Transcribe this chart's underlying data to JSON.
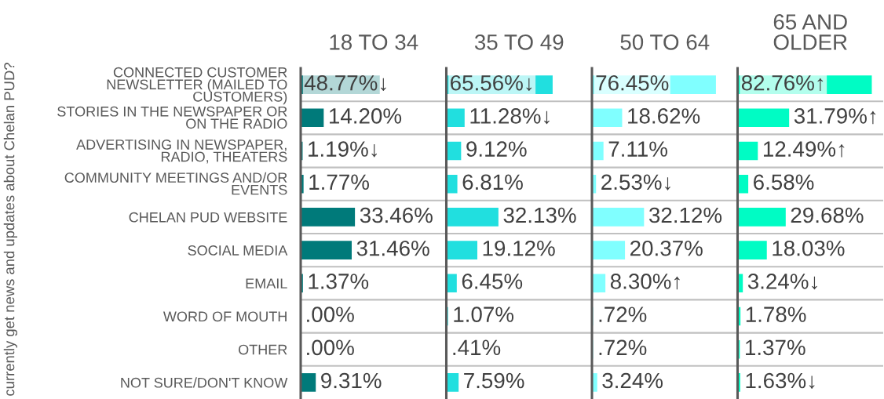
{
  "chart_data": [
    {
      "type": "bar",
      "orientation": "horizontal",
      "title": "18 TO 34",
      "ylabel": "currently get news and updates about Chelan PUD?",
      "categories": [
        "CONNECTED CUSTOMER\nNEWSLETTER (MAILED TO\nCUSTOMERS)",
        "STORIES IN THE NEWSPAPER OR\nON THE RADIO",
        "ADVERTISING IN NEWSPAPER,\nRADIO, THEATERS",
        "COMMUNITY MEETINGS AND/OR\nEVENTS",
        "CHELAN PUD WEBSITE",
        "SOCIAL MEDIA",
        "EMAIL",
        "WORD OF MOUTH",
        "OTHER",
        "NOT SURE/DON'T KNOW"
      ],
      "values": [
        48.77,
        14.2,
        1.19,
        1.77,
        33.46,
        31.46,
        1.37,
        0.0,
        0.0,
        9.31
      ],
      "value_labels": [
        "48.77%↓",
        "14.20%",
        "1.19%↓",
        "1.77%",
        "33.46%",
        "31.46%",
        "1.37%",
        ".00%",
        ".00%",
        "9.31%"
      ],
      "color": "#007a7a",
      "grid": "y",
      "tick_labels": "y"
    },
    {
      "type": "bar",
      "orientation": "horizontal",
      "title": "35 TO 49",
      "values": [
        65.56,
        11.28,
        9.12,
        6.81,
        32.13,
        19.12,
        6.45,
        1.07,
        0.41,
        7.59
      ],
      "value_labels": [
        "65.56%↓",
        "11.28%↓",
        "9.12%",
        "6.81%",
        "32.13%",
        "19.12%",
        "6.45%",
        "1.07%",
        ".41%",
        "7.59%"
      ],
      "color": "#21dfdf",
      "grid": "y",
      "tick_labels": false
    },
    {
      "type": "bar",
      "orientation": "horizontal",
      "title": "50 TO 64",
      "values": [
        76.45,
        18.62,
        7.11,
        2.53,
        32.12,
        20.37,
        8.3,
        0.72,
        0.72,
        3.24
      ],
      "value_labels": [
        "76.45%",
        "18.62%",
        "7.11%",
        "2.53%↓",
        "32.12%",
        "20.37%",
        "8.30%↑",
        ".72%",
        ".72%",
        "3.24%"
      ],
      "color": "#80ffff",
      "grid": "y",
      "tick_labels": false
    },
    {
      "type": "bar",
      "orientation": "horizontal",
      "title": "65 AND\nOLDER",
      "values": [
        82.76,
        31.79,
        12.49,
        6.58,
        29.68,
        18.03,
        3.24,
        1.78,
        1.37,
        1.63
      ],
      "value_labels": [
        "82.76%↑",
        "31.79%↑",
        "12.49%↑",
        "6.58%",
        "29.68%",
        "18.03%",
        "3.24%↓",
        "1.78%",
        "1.37%",
        "1.63%↓"
      ],
      "color": "#00fcc4",
      "grid": "y",
      "tick_labels": false
    }
  ]
}
